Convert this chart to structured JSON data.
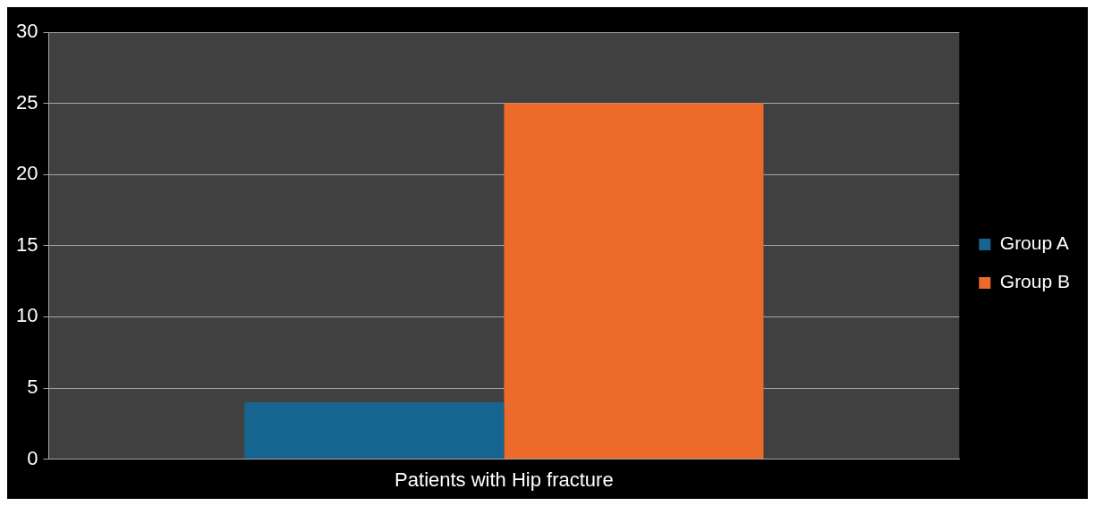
{
  "chart_data": {
    "type": "bar",
    "categories": [
      "Patients with Hip fracture"
    ],
    "series": [
      {
        "name": "Group A",
        "color": "#166590",
        "values": [
          4
        ]
      },
      {
        "name": "Group B",
        "color": "#ec6a2a",
        "values": [
          25
        ]
      }
    ],
    "ylim": [
      0,
      30
    ],
    "yticks": [
      0,
      5,
      10,
      15,
      20,
      25,
      30
    ],
    "grid": "y",
    "legend": "right"
  }
}
